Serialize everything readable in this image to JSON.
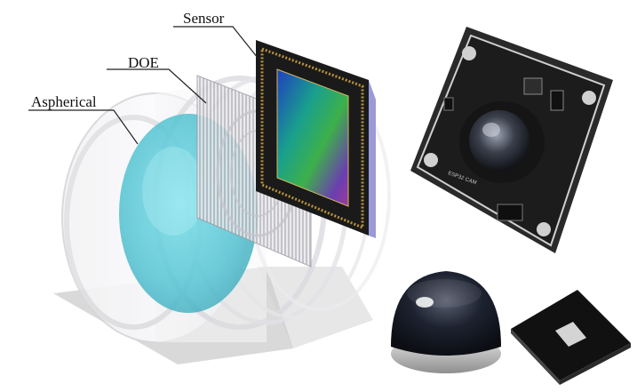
{
  "labels": {
    "sensor": "Sensor",
    "doe": "DOE",
    "aspherical": "Aspherical"
  },
  "camera_module": {
    "board_print": "ESP32 CAM"
  },
  "colors": {
    "leader_line": "#222222",
    "lens_cyan": "#57c9d6",
    "sensor_frame": "#1a1a1a",
    "sensor_gold": "#b8913a",
    "pcb_black": "#1c1c1c"
  }
}
